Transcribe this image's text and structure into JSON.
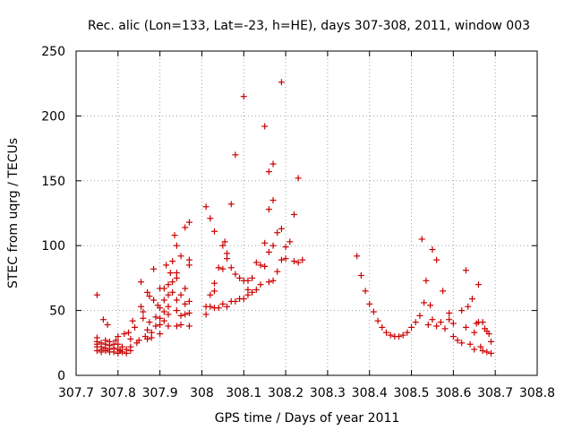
{
  "chart_data": {
    "type": "scatter",
    "title": "Rec. alic (Lon=133, Lat=-23, h=HE), days 307-308, 2011, window 003",
    "xlabel": "GPS time / Days of year 2011",
    "ylabel": "STEC from uqrg / TECUs",
    "xlim": [
      307.7,
      308.8
    ],
    "ylim": [
      0,
      250
    ],
    "xticks": [
      307.7,
      307.8,
      307.9,
      308,
      308.1,
      308.2,
      308.3,
      308.4,
      308.5,
      308.6,
      308.7,
      308.8
    ],
    "xtick_labels": [
      "307.7",
      "307.8",
      "307.9",
      "308",
      "308.1",
      "308.2",
      "308.3",
      "308.4",
      "308.5",
      "308.6",
      "308.7",
      "308.8"
    ],
    "yticks": [
      0,
      50,
      100,
      150,
      200,
      250
    ],
    "ytick_labels": [
      "0",
      "50",
      "100",
      "150",
      "200",
      "250"
    ],
    "grid": true,
    "marker": "+",
    "color": "#cc0000",
    "series": [
      {
        "name": "window 003",
        "points": [
          [
            307.75,
            62
          ],
          [
            307.75,
            29
          ],
          [
            307.75,
            26
          ],
          [
            307.75,
            24
          ],
          [
            307.75,
            22
          ],
          [
            307.75,
            19
          ],
          [
            307.76,
            25
          ],
          [
            307.76,
            22
          ],
          [
            307.76,
            20
          ],
          [
            307.76,
            18
          ],
          [
            307.765,
            43
          ],
          [
            307.77,
            27
          ],
          [
            307.77,
            24
          ],
          [
            307.77,
            21
          ],
          [
            307.77,
            19
          ],
          [
            307.775,
            39
          ],
          [
            307.78,
            26
          ],
          [
            307.78,
            23
          ],
          [
            307.78,
            20
          ],
          [
            307.78,
            18
          ],
          [
            307.79,
            24
          ],
          [
            307.79,
            21
          ],
          [
            307.79,
            18
          ],
          [
            307.795,
            27
          ],
          [
            307.8,
            30
          ],
          [
            307.8,
            24
          ],
          [
            307.8,
            20
          ],
          [
            307.8,
            17
          ],
          [
            307.805,
            19
          ],
          [
            307.81,
            22
          ],
          [
            307.81,
            18
          ],
          [
            307.815,
            32
          ],
          [
            307.82,
            20
          ],
          [
            307.82,
            17
          ],
          [
            307.825,
            33
          ],
          [
            307.83,
            28
          ],
          [
            307.83,
            22
          ],
          [
            307.83,
            19
          ],
          [
            307.835,
            42
          ],
          [
            307.84,
            37
          ],
          [
            307.845,
            25
          ],
          [
            307.85,
            27
          ],
          [
            307.855,
            72
          ],
          [
            307.855,
            53
          ],
          [
            307.86,
            49
          ],
          [
            307.86,
            44
          ],
          [
            307.865,
            30
          ],
          [
            307.87,
            35
          ],
          [
            307.87,
            28
          ],
          [
            307.87,
            64
          ],
          [
            307.875,
            61
          ],
          [
            307.875,
            41
          ],
          [
            307.88,
            33
          ],
          [
            307.88,
            29
          ],
          [
            307.885,
            82
          ],
          [
            307.885,
            58
          ],
          [
            307.89,
            45
          ],
          [
            307.89,
            38
          ],
          [
            307.895,
            54
          ],
          [
            307.9,
            67
          ],
          [
            307.9,
            52
          ],
          [
            307.9,
            44
          ],
          [
            307.9,
            39
          ],
          [
            307.9,
            32
          ],
          [
            307.91,
            67
          ],
          [
            307.91,
            58
          ],
          [
            307.91,
            49
          ],
          [
            307.91,
            42
          ],
          [
            307.915,
            85
          ],
          [
            307.92,
            70
          ],
          [
            307.92,
            62
          ],
          [
            307.92,
            53
          ],
          [
            307.92,
            47
          ],
          [
            307.92,
            38
          ],
          [
            307.925,
            79
          ],
          [
            307.93,
            88
          ],
          [
            307.93,
            72
          ],
          [
            307.93,
            64
          ],
          [
            307.935,
            108
          ],
          [
            307.94,
            100
          ],
          [
            307.94,
            79
          ],
          [
            307.94,
            75
          ],
          [
            307.94,
            58
          ],
          [
            307.94,
            50
          ],
          [
            307.94,
            38
          ],
          [
            307.95,
            92
          ],
          [
            307.95,
            62
          ],
          [
            307.95,
            46
          ],
          [
            307.95,
            39
          ],
          [
            307.96,
            114
          ],
          [
            307.96,
            67
          ],
          [
            307.96,
            55
          ],
          [
            307.96,
            47
          ],
          [
            307.97,
            118
          ],
          [
            307.97,
            89
          ],
          [
            307.97,
            85
          ],
          [
            307.97,
            57
          ],
          [
            307.97,
            48
          ],
          [
            307.97,
            38
          ],
          [
            308.01,
            130
          ],
          [
            308.01,
            53
          ],
          [
            308.01,
            47
          ],
          [
            308.02,
            121
          ],
          [
            308.02,
            62
          ],
          [
            308.02,
            53
          ],
          [
            308.03,
            111
          ],
          [
            308.03,
            71
          ],
          [
            308.03,
            65
          ],
          [
            308.03,
            52
          ],
          [
            308.04,
            83
          ],
          [
            308.04,
            52
          ],
          [
            308.05,
            100
          ],
          [
            308.05,
            82
          ],
          [
            308.05,
            55
          ],
          [
            308.055,
            103
          ],
          [
            308.06,
            94
          ],
          [
            308.06,
            90
          ],
          [
            308.06,
            53
          ],
          [
            308.07,
            132
          ],
          [
            308.07,
            83
          ],
          [
            308.07,
            57
          ],
          [
            308.08,
            170
          ],
          [
            308.08,
            78
          ],
          [
            308.08,
            57
          ],
          [
            308.09,
            75
          ],
          [
            308.09,
            59
          ],
          [
            308.1,
            215
          ],
          [
            308.1,
            73
          ],
          [
            308.1,
            59
          ],
          [
            308.11,
            73
          ],
          [
            308.11,
            66
          ],
          [
            308.11,
            62
          ],
          [
            308.12,
            75
          ],
          [
            308.12,
            64
          ],
          [
            308.13,
            87
          ],
          [
            308.13,
            66
          ],
          [
            308.14,
            85
          ],
          [
            308.14,
            70
          ],
          [
            308.15,
            192
          ],
          [
            308.15,
            102
          ],
          [
            308.15,
            84
          ],
          [
            308.16,
            157
          ],
          [
            308.16,
            128
          ],
          [
            308.16,
            95
          ],
          [
            308.16,
            72
          ],
          [
            308.17,
            163
          ],
          [
            308.17,
            135
          ],
          [
            308.17,
            100
          ],
          [
            308.17,
            73
          ],
          [
            308.18,
            110
          ],
          [
            308.18,
            80
          ],
          [
            308.19,
            226
          ],
          [
            308.19,
            113
          ],
          [
            308.19,
            89
          ],
          [
            308.2,
            99
          ],
          [
            308.2,
            90
          ],
          [
            308.21,
            103
          ],
          [
            308.22,
            124
          ],
          [
            308.22,
            88
          ],
          [
            308.23,
            152
          ],
          [
            308.23,
            87
          ],
          [
            308.24,
            89
          ],
          [
            308.37,
            92
          ],
          [
            308.38,
            77
          ],
          [
            308.39,
            65
          ],
          [
            308.4,
            55
          ],
          [
            308.41,
            49
          ],
          [
            308.42,
            42
          ],
          [
            308.43,
            37
          ],
          [
            308.44,
            33
          ],
          [
            308.45,
            31
          ],
          [
            308.46,
            30
          ],
          [
            308.47,
            30
          ],
          [
            308.48,
            31
          ],
          [
            308.49,
            33
          ],
          [
            308.5,
            37
          ],
          [
            308.51,
            41
          ],
          [
            308.52,
            46
          ],
          [
            308.525,
            105
          ],
          [
            308.53,
            56
          ],
          [
            308.535,
            73
          ],
          [
            308.54,
            39
          ],
          [
            308.545,
            54
          ],
          [
            308.55,
            97
          ],
          [
            308.55,
            43
          ],
          [
            308.56,
            38
          ],
          [
            308.56,
            89
          ],
          [
            308.57,
            41
          ],
          [
            308.575,
            65
          ],
          [
            308.58,
            36
          ],
          [
            308.59,
            43
          ],
          [
            308.59,
            48
          ],
          [
            308.6,
            40
          ],
          [
            308.6,
            30
          ],
          [
            308.61,
            27
          ],
          [
            308.62,
            50
          ],
          [
            308.62,
            25
          ],
          [
            308.63,
            81
          ],
          [
            308.63,
            37
          ],
          [
            308.635,
            53
          ],
          [
            308.64,
            24
          ],
          [
            308.645,
            59
          ],
          [
            308.65,
            33
          ],
          [
            308.65,
            20
          ],
          [
            308.655,
            40
          ],
          [
            308.66,
            41
          ],
          [
            308.66,
            70
          ],
          [
            308.665,
            22
          ],
          [
            308.67,
            41
          ],
          [
            308.67,
            19
          ],
          [
            308.675,
            36
          ],
          [
            308.68,
            34
          ],
          [
            308.68,
            18
          ],
          [
            308.685,
            32
          ],
          [
            308.69,
            26
          ],
          [
            308.69,
            17
          ]
        ]
      }
    ]
  }
}
